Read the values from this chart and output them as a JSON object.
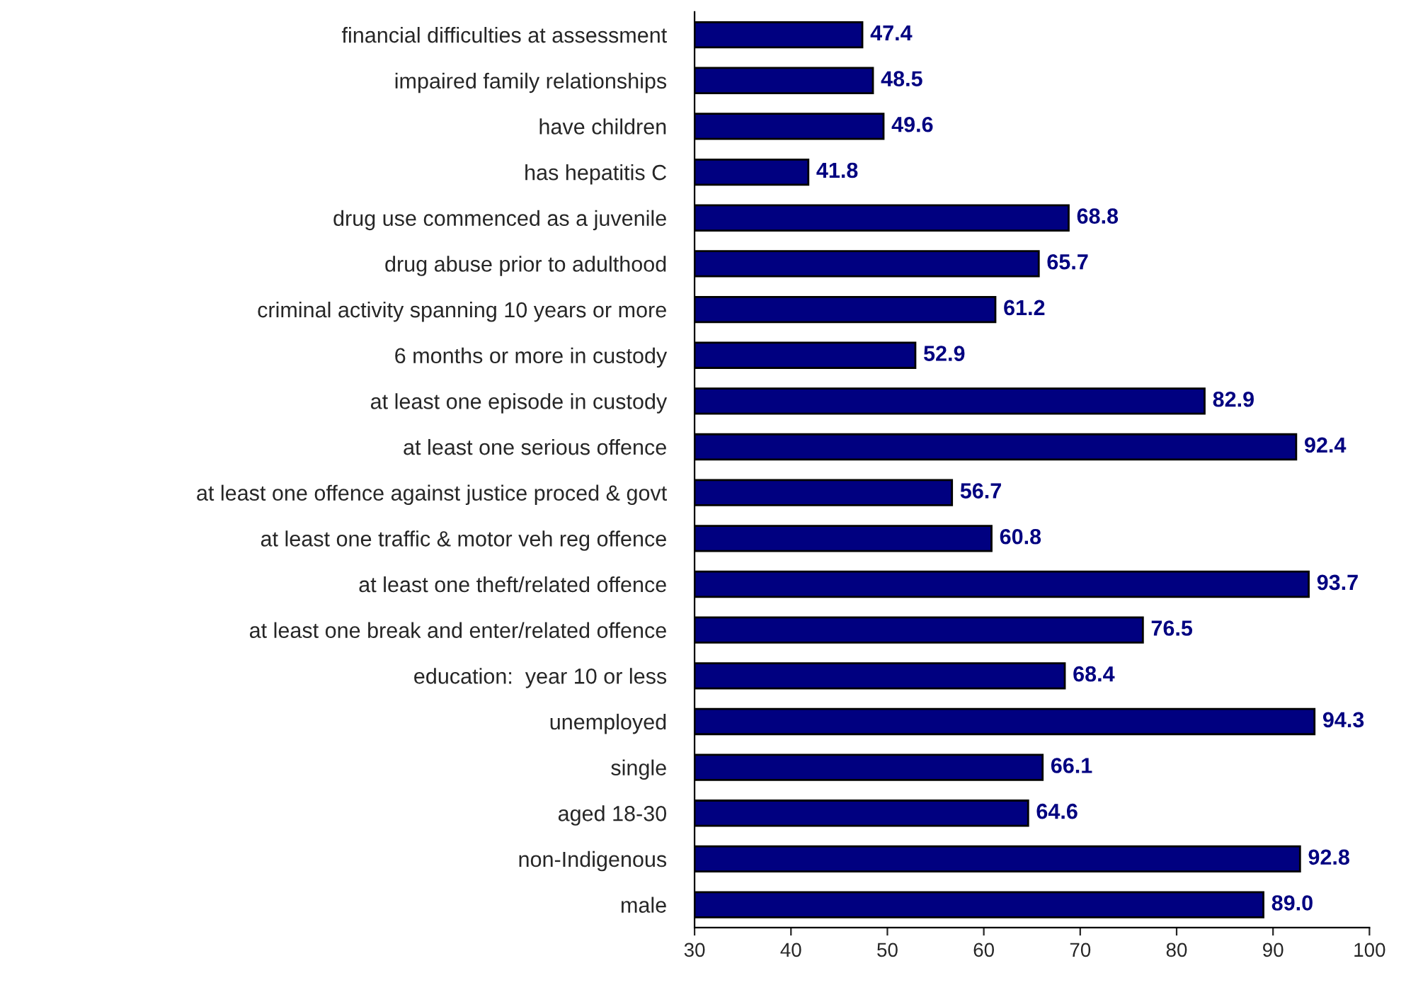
{
  "chart_data": {
    "type": "bar",
    "orientation": "horizontal",
    "categories": [
      "financial difficulties at assessment",
      "impaired family relationships",
      "have children",
      "has hepatitis C",
      "drug use commenced as a juvenile",
      "drug abuse prior to adulthood",
      "criminal activity spanning 10 years or more",
      "6 months or more in custody",
      "at least one episode in custody",
      "at least one serious offence",
      "at least one offence against justice proced & govt",
      "at least one traffic & motor veh reg offence",
      "at least one theft/related offence",
      "at least one break and enter/related offence",
      "education:  year 10 or less",
      "unemployed",
      "single",
      "aged 18-30",
      "non-Indigenous",
      "male"
    ],
    "values": [
      47.4,
      48.5,
      49.6,
      41.8,
      68.8,
      65.7,
      61.2,
      52.9,
      82.9,
      92.4,
      56.7,
      60.8,
      93.7,
      76.5,
      68.4,
      94.3,
      66.1,
      64.6,
      92.8,
      89.0
    ],
    "value_labels": [
      "47.4",
      "48.5",
      "49.6",
      "41.8",
      "68.8",
      "65.7",
      "61.2",
      "52.9",
      "82.9",
      "92.4",
      "56.7",
      "60.8",
      "93.7",
      "76.5",
      "68.4",
      "94.3",
      "66.1",
      "64.6",
      "92.8",
      "89.0"
    ],
    "color": "#000080",
    "xlim": [
      30,
      100
    ],
    "xticks": [
      30,
      40,
      50,
      60,
      70,
      80,
      90,
      100
    ],
    "grid": false,
    "legend": false
  }
}
